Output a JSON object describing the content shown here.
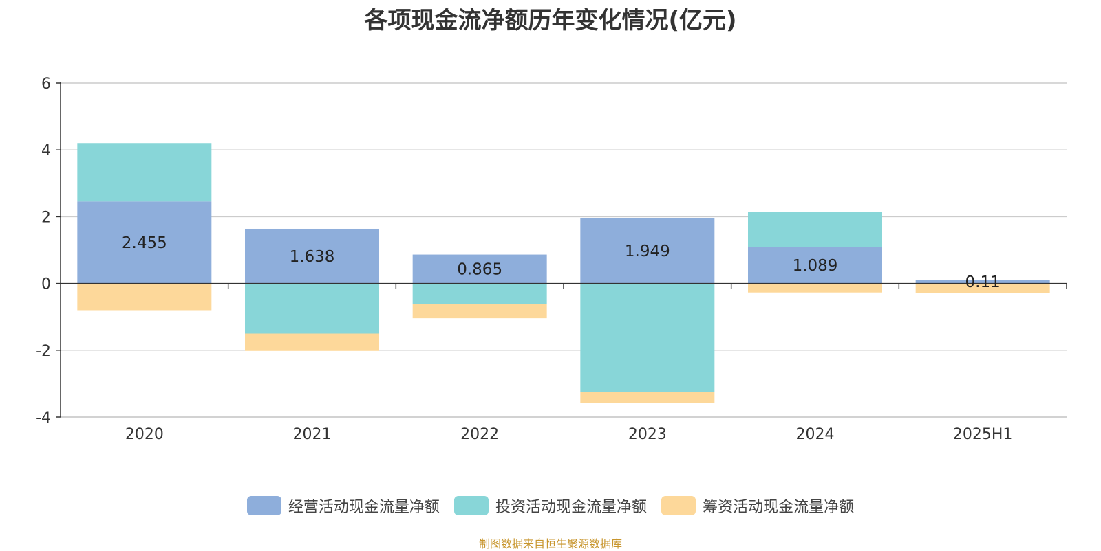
{
  "chart_data": {
    "type": "bar",
    "stacked": true,
    "title": "各项现金流净额历年变化情况(亿元)",
    "categories": [
      "2020",
      "2021",
      "2022",
      "2023",
      "2024",
      "2025H1"
    ],
    "ylim": [
      -4,
      6
    ],
    "yticks": [
      6,
      4,
      2,
      0,
      -2,
      -4
    ],
    "grid": true,
    "legend_position": "bottom-center",
    "series": [
      {
        "name": "经营活动现金流量净额",
        "color": "#8eaedb",
        "values": [
          2.455,
          1.638,
          0.865,
          1.949,
          1.089,
          0.11
        ],
        "labels": [
          "2.455",
          "1.638",
          "0.865",
          "1.949",
          "1.089",
          "0.11"
        ]
      },
      {
        "name": "投资活动现金流量净额",
        "color": "#88d6d8",
        "values": [
          1.75,
          -1.5,
          -0.62,
          -3.25,
          1.06,
          0.0
        ]
      },
      {
        "name": "筹资活动现金流量净额",
        "color": "#fdd89a",
        "values": [
          -0.8,
          -0.52,
          -0.42,
          -0.33,
          -0.27,
          -0.28
        ]
      }
    ]
  },
  "source_note": "制图数据来自恒生聚源数据库"
}
